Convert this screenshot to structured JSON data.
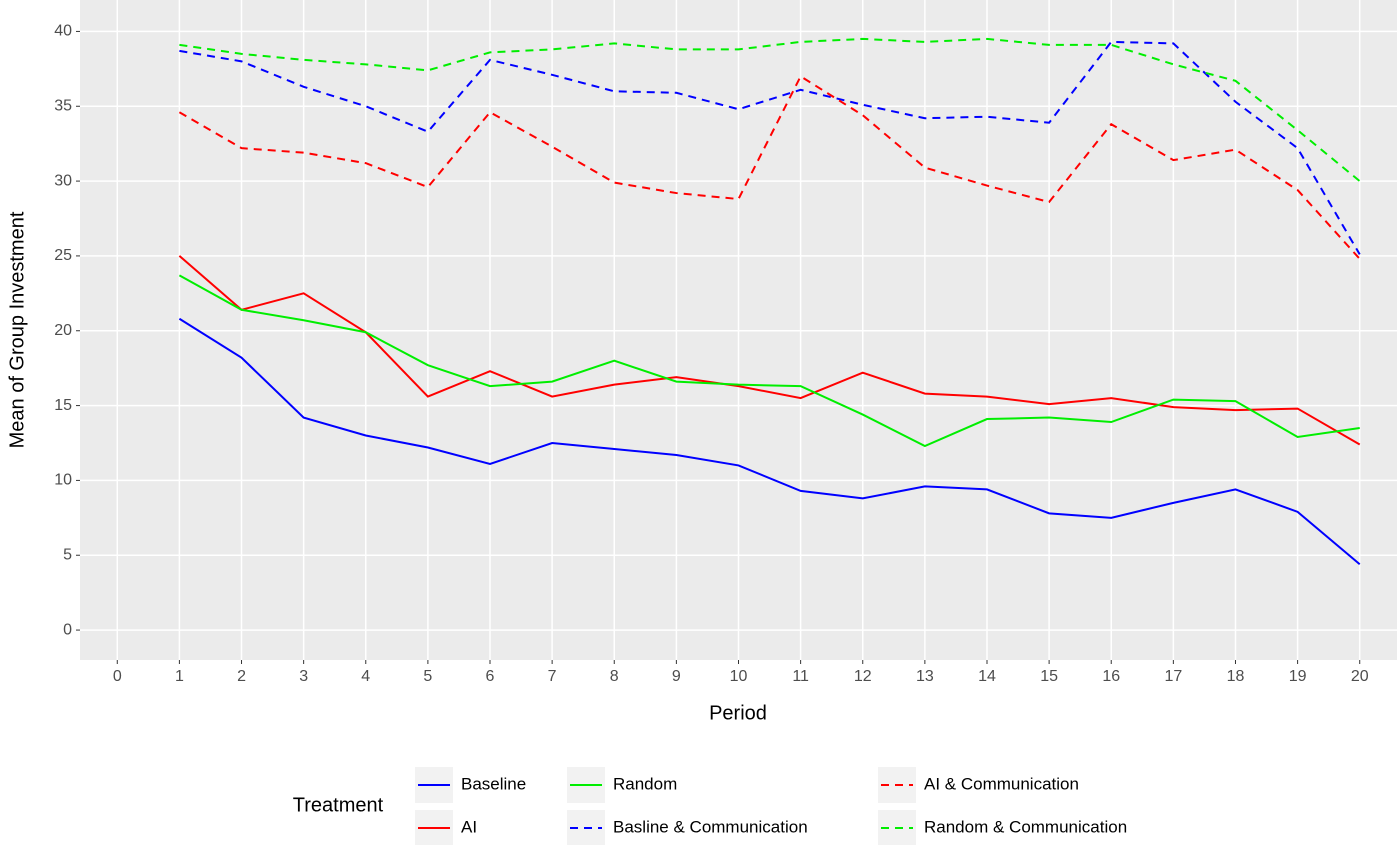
{
  "chart_data": {
    "type": "line",
    "x_label": "Period",
    "y_label": "Mean of Group Investment",
    "legend_title": "Treatment",
    "x": [
      1,
      2,
      3,
      4,
      5,
      6,
      7,
      8,
      9,
      10,
      11,
      12,
      13,
      14,
      15,
      16,
      17,
      18,
      19,
      20
    ],
    "xlim": [
      -0.6,
      20.6
    ],
    "xticks": [
      0,
      1,
      2,
      3,
      4,
      5,
      6,
      7,
      8,
      9,
      10,
      11,
      12,
      13,
      14,
      15,
      16,
      17,
      18,
      19,
      20
    ],
    "ylim": [
      -2.0,
      42.1
    ],
    "yticks": [
      0,
      5,
      10,
      15,
      20,
      25,
      30,
      35,
      40
    ],
    "grid": true,
    "series": [
      {
        "name": "Baseline",
        "color": "#0000ff",
        "dashed": false,
        "values": [
          20.8,
          18.2,
          14.2,
          13.0,
          12.2,
          11.1,
          12.5,
          12.1,
          11.7,
          11.0,
          9.3,
          8.8,
          9.6,
          9.4,
          7.8,
          7.5,
          8.5,
          9.4,
          7.9,
          4.4
        ]
      },
      {
        "name": "AI",
        "color": "#ff0000",
        "dashed": false,
        "values": [
          25.0,
          21.4,
          22.5,
          19.9,
          15.6,
          17.3,
          15.6,
          16.4,
          16.9,
          16.3,
          15.5,
          17.2,
          15.8,
          15.6,
          15.1,
          15.5,
          14.9,
          14.7,
          14.8,
          12.4
        ]
      },
      {
        "name": "Random",
        "color": "#00ee00",
        "dashed": false,
        "values": [
          23.7,
          21.4,
          20.7,
          19.9,
          17.7,
          16.3,
          16.6,
          18.0,
          16.6,
          16.4,
          16.3,
          14.4,
          12.3,
          14.1,
          14.2,
          13.9,
          15.4,
          15.3,
          12.9,
          13.5
        ]
      },
      {
        "name": "Basline & Communication",
        "color": "#0000ff",
        "dashed": true,
        "values": [
          38.7,
          38.0,
          36.3,
          35.0,
          33.3,
          38.1,
          37.1,
          36.0,
          35.9,
          34.8,
          36.1,
          35.1,
          34.2,
          34.3,
          33.9,
          39.3,
          39.2,
          35.3,
          32.2,
          25.1
        ]
      },
      {
        "name": "AI & Communication",
        "color": "#ff0000",
        "dashed": true,
        "values": [
          34.6,
          32.2,
          31.9,
          31.2,
          29.6,
          34.6,
          32.3,
          29.9,
          29.2,
          28.8,
          37.0,
          34.4,
          30.9,
          29.7,
          28.6,
          33.8,
          31.4,
          32.1,
          29.4,
          24.8
        ]
      },
      {
        "name": "Random & Communication",
        "color": "#00ee00",
        "dashed": true,
        "values": [
          39.1,
          38.5,
          38.1,
          37.8,
          37.4,
          38.6,
          38.8,
          39.2,
          38.8,
          38.8,
          39.3,
          39.5,
          39.3,
          39.5,
          39.1,
          39.1,
          37.8,
          36.7,
          33.4,
          30.0
        ]
      }
    ]
  }
}
